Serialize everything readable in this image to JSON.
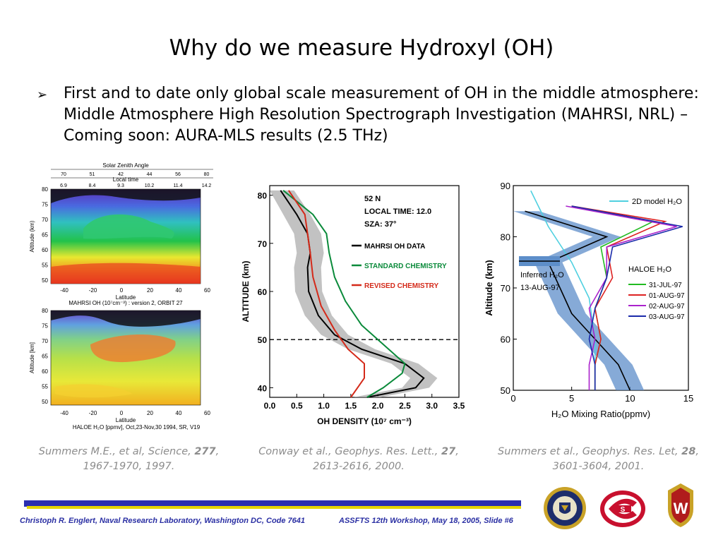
{
  "slide": {
    "title": "Why do we measure Hydroxyl (OH)",
    "bullet_marker": "➢",
    "bullet_text": "First and to date only global scale measurement of OH in the middle atmosphere: Middle Atmosphere High Resolution Spectrograph Investigation (MAHRSI, NRL) – Coming soon: AURA-MLS results (2.5 THz)"
  },
  "figure_left": {
    "top_axis_title": "Solar Zenith Angle",
    "sza_ticks": [
      "70",
      "51",
      "42",
      "44",
      "56",
      "80"
    ],
    "local_time_title": "Local time",
    "lt_ticks": [
      "6.9",
      "8.4",
      "9.3",
      "10.2",
      "11.4",
      "14.2"
    ],
    "y_label": "Altitude (km)",
    "y_label_2": "Altitude [km]",
    "y_ticks": [
      "80",
      "75",
      "70",
      "65",
      "60",
      "55",
      "50"
    ],
    "x_ticks": [
      "-40",
      "-20",
      "0",
      "20",
      "40",
      "60"
    ],
    "x_label": "Latitude",
    "x_label_2": "Latitude",
    "caption_top": "MAHRSI OH (10⁷cm⁻³) : version 2, ORBIT 27",
    "caption_bottom": "HALOE H₂O [ppmv], Oct,23-Nov,30 1994, SR, V19"
  },
  "chart_data": [
    {
      "type": "line",
      "title": "",
      "xlabel": "OH DENSITY (10⁷ cm⁻³)",
      "ylabel": "ALTITUDE (km)",
      "xlim": [
        0.0,
        3.5
      ],
      "ylim": [
        38,
        82
      ],
      "x_ticks": [
        "0.0",
        "0.5",
        "1.0",
        "1.5",
        "2.0",
        "2.5",
        "3.0",
        "3.5"
      ],
      "y_ticks": [
        "80",
        "70",
        "60",
        "50",
        "40"
      ],
      "annotations": [
        "52 N",
        "LOCAL TIME: 12.0",
        "SZA: 37°"
      ],
      "series": [
        {
          "name": "MAHRSI OH DATA",
          "color": "#000000",
          "x": [
            0.2,
            0.5,
            0.7,
            0.75,
            0.7,
            0.72,
            0.9,
            1.2,
            1.7,
            2.5,
            2.85,
            2.7,
            1.8
          ],
          "y": [
            81,
            76,
            72,
            68,
            65,
            60,
            55,
            51,
            48,
            45,
            42,
            40,
            38
          ]
        },
        {
          "name": "STANDARD CHEMISTRY",
          "color": "#0a8a3a",
          "x": [
            0.25,
            0.8,
            1.05,
            1.1,
            1.2,
            1.4,
            1.7,
            2.1,
            2.5,
            2.45,
            2.1,
            1.8
          ],
          "y": [
            81,
            76,
            72,
            68,
            63,
            58,
            53,
            49,
            45,
            43,
            40,
            38
          ]
        },
        {
          "name": "REVISED CHEMISTRY",
          "color": "#d42a1a",
          "x": [
            0.35,
            0.65,
            0.7,
            0.75,
            0.8,
            0.95,
            1.2,
            1.45,
            1.75,
            1.75,
            1.5
          ],
          "y": [
            81,
            76,
            72,
            68,
            63,
            57,
            52,
            48,
            45,
            42,
            38
          ]
        }
      ],
      "reference_line_y": 50
    },
    {
      "type": "line",
      "title": "",
      "xlabel": "H₂O Mixing Ratio(ppmv)",
      "ylabel": "Altitude (km)",
      "xlim": [
        0,
        15
      ],
      "ylim": [
        50,
        90
      ],
      "x_ticks": [
        "0",
        "5",
        "10",
        "15"
      ],
      "y_ticks": [
        "90",
        "80",
        "70",
        "60",
        "50"
      ],
      "annotations": [
        "2D model H₂O",
        "Inferred H₂O",
        "13-AUG-97",
        "HALOE H₂O"
      ],
      "series": [
        {
          "name": "2D model H₂O",
          "color": "#4fd0e0",
          "x": [
            1.5,
            3,
            5,
            6.5,
            7,
            7
          ],
          "y": [
            89,
            82,
            75,
            68,
            60,
            50
          ]
        },
        {
          "name": "Inferred H₂O 13-AUG-97",
          "color": "#000000",
          "x": [
            1,
            8,
            3,
            4,
            5,
            7,
            9,
            10
          ],
          "y": [
            85,
            80,
            75,
            70,
            65,
            60,
            55,
            50
          ]
        },
        {
          "name": "31-JUL-97",
          "color": "#22bb22",
          "x": [
            5,
            12,
            7.5,
            8,
            7,
            7.5,
            7,
            7
          ],
          "y": [
            86,
            83,
            78,
            72,
            66,
            60,
            55,
            50
          ]
        },
        {
          "name": "01-AUG-97",
          "color": "#dd2222",
          "x": [
            5,
            13,
            8,
            8.5,
            7,
            7.5,
            7,
            7
          ],
          "y": [
            86,
            83,
            78,
            72,
            66,
            60,
            55,
            50
          ]
        },
        {
          "name": "02-AUG-97",
          "color": "#aa22cc",
          "x": [
            4.5,
            14,
            8,
            8,
            6.5,
            7,
            6.5,
            6.5
          ],
          "y": [
            86,
            82,
            78,
            72,
            66,
            60,
            55,
            50
          ]
        },
        {
          "name": "03-AUG-97",
          "color": "#1a2aaa",
          "x": [
            5,
            14.5,
            8.5,
            8,
            7,
            6.5,
            7,
            7
          ],
          "y": [
            86,
            82,
            78,
            72,
            66,
            60,
            55,
            50
          ]
        }
      ]
    }
  ],
  "captions": {
    "left_pre": "Summers M.E., et al, Science, ",
    "left_bold": "277",
    "left_post": ", 1967-1970, 1997.",
    "mid_pre": "Conway et al., Geophys. Res. Lett., ",
    "mid_bold": "27",
    "mid_post": ", 2613-2616, 2000.",
    "right_pre": "Summers et al., Geophys. Res. Let, ",
    "right_bold": "28",
    "right_post": ", 3601-3604, 2001."
  },
  "footer": {
    "left": "Christoph R. Englert, Naval Research Laboratory, Washington DC, Code 7641",
    "right": "ASSFTS 12th Workshop, May 18, 2005, Slide #6"
  },
  "colors": {
    "footer_text": "#2a2fa3",
    "bar_blue": "#2b2fb0",
    "bar_yellow": "#e5d600"
  },
  "logos": [
    "naval-research-seal-icon",
    "red-wings-logo-icon",
    "wisconsin-crest-icon"
  ]
}
